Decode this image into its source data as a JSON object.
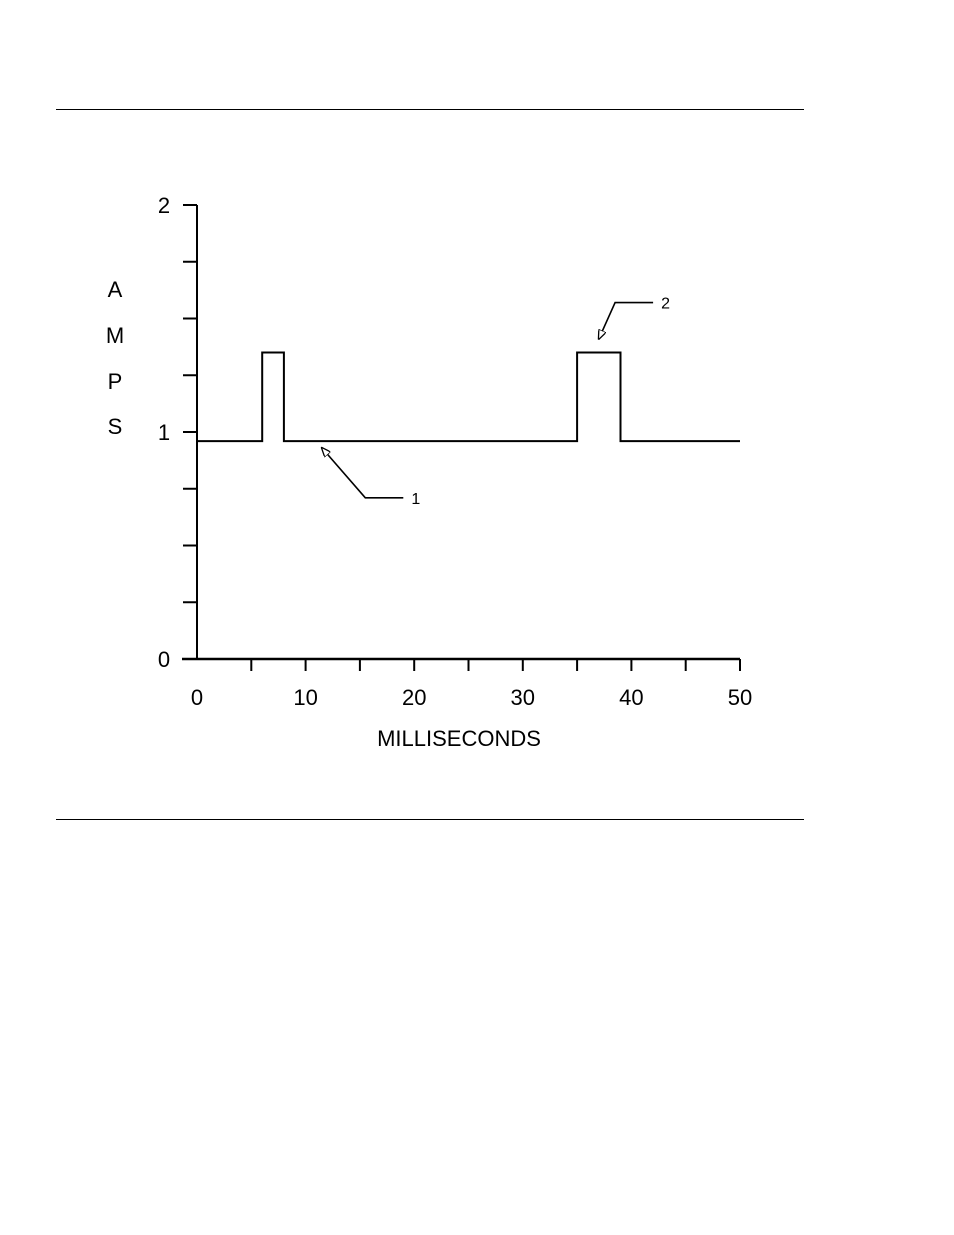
{
  "chart_data": {
    "type": "line",
    "xlabel": "MILLISECONDS",
    "ylabel_letters": [
      "A",
      "M",
      "P",
      "S"
    ],
    "xlim": [
      0,
      50
    ],
    "ylim": [
      0,
      2
    ],
    "x_ticks": [
      0,
      5,
      10,
      15,
      20,
      25,
      30,
      35,
      40,
      45,
      50
    ],
    "x_tick_labels": [
      {
        "value": 0,
        "label": "0"
      },
      {
        "value": 10,
        "label": "10"
      },
      {
        "value": 20,
        "label": "20"
      },
      {
        "value": 30,
        "label": "30"
      },
      {
        "value": 40,
        "label": "40"
      },
      {
        "value": 50,
        "label": "50"
      }
    ],
    "y_ticks": [
      0,
      0.25,
      0.5,
      0.75,
      1,
      1.25,
      1.5,
      1.75,
      2
    ],
    "y_tick_labels": [
      {
        "value": 0,
        "label": "0"
      },
      {
        "value": 1,
        "label": "1"
      },
      {
        "value": 2,
        "label": "2"
      }
    ],
    "grid": false,
    "series": [
      {
        "points": [
          [
            0,
            0.96
          ],
          [
            6,
            0.96
          ],
          [
            6,
            1.35
          ],
          [
            8,
            1.35
          ],
          [
            8,
            0.96
          ],
          [
            35,
            0.96
          ],
          [
            35,
            1.35
          ],
          [
            39,
            1.35
          ],
          [
            39,
            0.96
          ],
          [
            50,
            0.96
          ]
        ]
      }
    ],
    "annotations": [
      {
        "label": "1",
        "target": [
          11.5,
          0.93
        ],
        "elbow": [
          15.5,
          0.71
        ],
        "label_at": [
          19,
          0.71
        ]
      },
      {
        "label": "2",
        "target": [
          37,
          1.41
        ],
        "elbow": [
          38.5,
          1.57
        ],
        "label_at": [
          42,
          1.57
        ]
      }
    ]
  }
}
